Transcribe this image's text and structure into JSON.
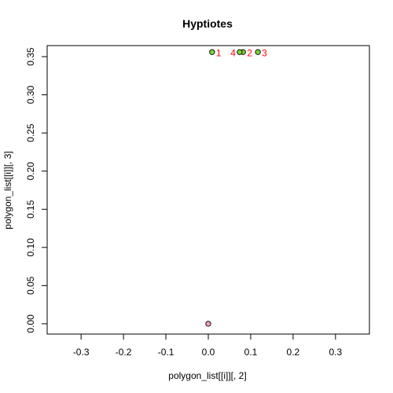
{
  "chart_data": {
    "type": "scatter",
    "title": "Hyptiotes",
    "xlabel": "polygon_list[[i]][, 2]",
    "ylabel": "polygon_list[[i]][, 3]",
    "xlim": [
      -0.38,
      0.38
    ],
    "ylim": [
      -0.0135,
      0.3645
    ],
    "x_ticks": [
      -0.3,
      -0.2,
      -0.1,
      0.0,
      0.1,
      0.2,
      0.3
    ],
    "x_tick_labels": [
      "-0.3",
      "-0.2",
      "-0.1",
      "0.0",
      "0.1",
      "0.2",
      "0.3"
    ],
    "y_ticks": [
      0.0,
      0.05,
      0.1,
      0.15,
      0.2,
      0.25,
      0.3,
      0.35
    ],
    "y_tick_labels": [
      "0.00",
      "0.05",
      "0.10",
      "0.15",
      "0.20",
      "0.25",
      "0.30",
      "0.35"
    ],
    "grid": false,
    "series": [
      {
        "color": "#7fd13b",
        "points": [
          {
            "x": 0.009,
            "y": 0.356,
            "label": "1",
            "label_side": "right"
          },
          {
            "x": 0.082,
            "y": 0.356,
            "label": "2",
            "label_side": "right"
          },
          {
            "x": 0.117,
            "y": 0.356,
            "label": "3",
            "label_side": "right"
          },
          {
            "x": 0.074,
            "y": 0.356,
            "label": "4",
            "label_side": "left"
          }
        ]
      },
      {
        "color": "#f4a0b8",
        "points": [
          {
            "x": 0.0,
            "y": 0.0,
            "label": "",
            "label_side": "right"
          }
        ]
      }
    ],
    "label_color": "#ff0000"
  }
}
